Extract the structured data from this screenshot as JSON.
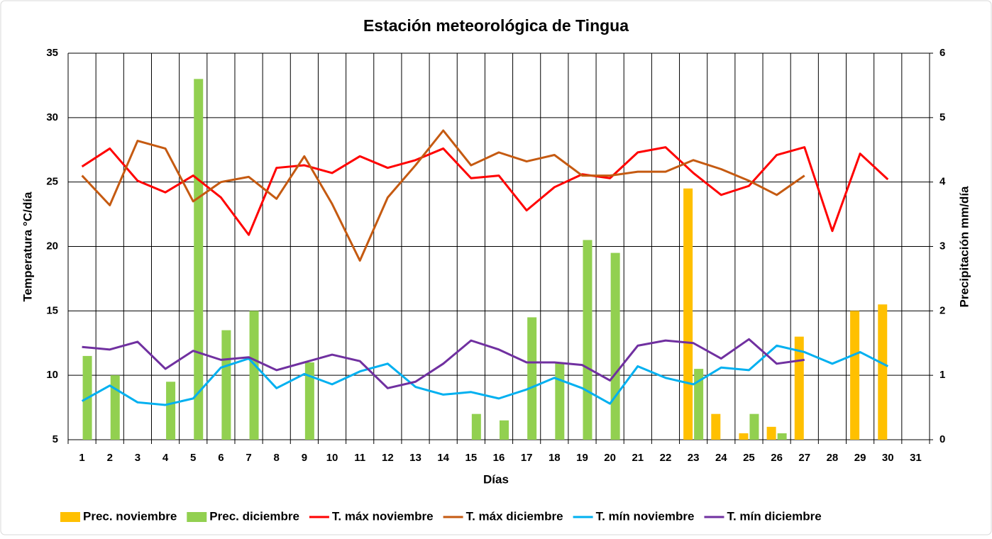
{
  "chart_data": {
    "type": "bar-line",
    "title": "Estación meteorológica de Tingua",
    "x_label": "Días",
    "y_label": "Temperatura °C/día",
    "y2_label": "Precipitación mm/día",
    "categories": [
      "1",
      "2",
      "3",
      "4",
      "5",
      "6",
      "7",
      "8",
      "9",
      "10",
      "11",
      "12",
      "13",
      "14",
      "15",
      "16",
      "17",
      "18",
      "19",
      "20",
      "21",
      "22",
      "23",
      "24",
      "25",
      "26",
      "27",
      "28",
      "29",
      "30",
      "31"
    ],
    "ylim": [
      5,
      35
    ],
    "yticks": [
      5,
      10,
      15,
      20,
      25,
      30,
      35
    ],
    "y2lim": [
      0,
      6
    ],
    "y2ticks": [
      0,
      1,
      2,
      3,
      4,
      5,
      6
    ],
    "grid": true,
    "legend": "bottom",
    "series": [
      {
        "name": "Prec. noviembre",
        "type": "bar",
        "axis": "y2",
        "color": "#ffc000",
        "values": [
          null,
          null,
          null,
          null,
          null,
          null,
          null,
          null,
          null,
          null,
          null,
          null,
          null,
          null,
          null,
          null,
          null,
          null,
          null,
          null,
          null,
          null,
          3.9,
          0.4,
          0.1,
          0.2,
          1.6,
          null,
          2.0,
          2.1,
          null
        ]
      },
      {
        "name": "Prec. diciembre",
        "type": "bar",
        "axis": "y2",
        "color": "#92d050",
        "values": [
          1.3,
          1.0,
          null,
          0.9,
          5.6,
          1.7,
          2.0,
          null,
          1.2,
          null,
          null,
          null,
          null,
          null,
          0.4,
          0.3,
          1.9,
          1.2,
          3.1,
          2.9,
          null,
          null,
          1.1,
          null,
          0.4,
          0.1,
          null,
          null,
          null,
          null,
          null
        ]
      },
      {
        "name": "T. máx noviembre",
        "type": "line",
        "color": "#ff0000",
        "values": [
          26.2,
          27.6,
          25.1,
          24.2,
          25.5,
          23.8,
          20.9,
          26.1,
          26.3,
          25.7,
          27.0,
          26.1,
          26.7,
          27.6,
          25.3,
          25.5,
          22.8,
          24.6,
          25.6,
          25.3,
          27.3,
          27.7,
          25.7,
          24.0,
          24.7,
          27.1,
          27.7,
          21.2,
          27.2,
          25.2,
          null
        ]
      },
      {
        "name": "T. máx diciembre",
        "type": "line",
        "color": "#c55a11",
        "values": [
          25.5,
          23.2,
          28.2,
          27.6,
          23.5,
          25.0,
          25.4,
          23.7,
          27.0,
          23.3,
          18.9,
          23.8,
          26.3,
          29.0,
          26.3,
          27.3,
          26.6,
          27.1,
          25.5,
          25.5,
          25.8,
          25.8,
          26.7,
          26.0,
          25.1,
          24.0,
          25.5,
          null,
          null,
          null,
          null
        ]
      },
      {
        "name": "T. mín noviembre",
        "type": "line",
        "color": "#00b0f0",
        "values": [
          8.0,
          9.2,
          7.9,
          7.7,
          8.2,
          10.6,
          11.3,
          9.0,
          10.1,
          9.3,
          10.3,
          10.9,
          9.1,
          8.5,
          8.7,
          8.2,
          8.9,
          9.8,
          9.0,
          7.8,
          10.7,
          9.8,
          9.3,
          10.6,
          10.4,
          12.3,
          11.8,
          10.9,
          11.8,
          10.7,
          null
        ]
      },
      {
        "name": "T. mín diciembre",
        "type": "line",
        "color": "#7030a0",
        "values": [
          12.2,
          12.0,
          12.6,
          10.5,
          11.9,
          11.2,
          11.4,
          10.4,
          11.0,
          11.6,
          11.1,
          9.0,
          9.5,
          10.9,
          12.7,
          12.0,
          11.0,
          11.0,
          10.8,
          9.6,
          12.3,
          12.7,
          12.5,
          11.3,
          12.8,
          10.9,
          11.2,
          null,
          null,
          null,
          null
        ]
      }
    ]
  }
}
